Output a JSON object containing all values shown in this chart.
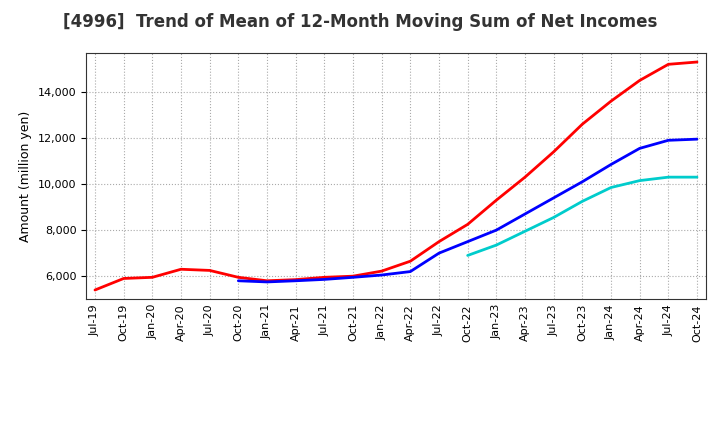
{
  "title": "[4996]  Trend of Mean of 12-Month Moving Sum of Net Incomes",
  "ylabel": "Amount (million yen)",
  "background_color": "#ffffff",
  "grid_color": "#aaaaaa",
  "title_fontsize": 12,
  "label_fontsize": 9,
  "tick_fontsize": 8,
  "series": {
    "3y": {
      "color": "#ff0000",
      "x_idx": [
        0,
        1,
        2,
        3,
        4,
        5,
        6,
        7,
        8,
        9,
        10,
        11,
        12,
        13,
        14,
        15,
        16,
        17,
        18,
        19,
        20,
        21
      ],
      "values": [
        5400,
        5900,
        5950,
        6300,
        6250,
        5950,
        5800,
        5850,
        5950,
        6000,
        6220,
        6650,
        7500,
        8250,
        9300,
        10300,
        11400,
        12600,
        13600,
        14500,
        15200,
        15300
      ]
    },
    "5y": {
      "color": "#0000ff",
      "x_idx": [
        5,
        6,
        7,
        8,
        9,
        10,
        11,
        12,
        13,
        14,
        15,
        16,
        17,
        18,
        19,
        20,
        21
      ],
      "values": [
        5800,
        5750,
        5800,
        5860,
        5950,
        6050,
        6200,
        7000,
        7500,
        8000,
        8700,
        9400,
        10100,
        10850,
        11550,
        11900,
        11950
      ]
    },
    "7y": {
      "color": "#00cccc",
      "x_idx": [
        13,
        14,
        15,
        16,
        17,
        18,
        19,
        20,
        21
      ],
      "values": [
        6900,
        7350,
        7950,
        8550,
        9250,
        9850,
        10150,
        10300,
        10300
      ]
    },
    "10y": {
      "color": "#008800",
      "x_idx": [],
      "values": []
    }
  },
  "ylim": [
    5000,
    15700
  ],
  "yticks": [
    6000,
    8000,
    10000,
    12000,
    14000
  ],
  "xtick_labels": [
    "Jul-19",
    "Oct-19",
    "Jan-20",
    "Apr-20",
    "Jul-20",
    "Oct-20",
    "Jan-21",
    "Apr-21",
    "Jul-21",
    "Oct-21",
    "Jan-22",
    "Apr-22",
    "Jul-22",
    "Oct-22",
    "Jan-23",
    "Apr-23",
    "Jul-23",
    "Oct-23",
    "Jan-24",
    "Apr-24",
    "Jul-24",
    "Oct-24"
  ]
}
